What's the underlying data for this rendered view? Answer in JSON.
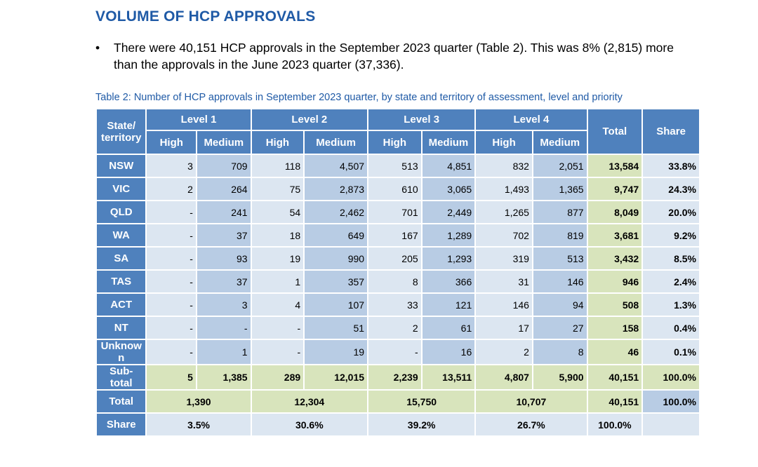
{
  "heading": "VOLUME OF HCP APPROVALS",
  "bullet": {
    "symbol": "•",
    "text": "There were 40,151 HCP approvals in the September 2023 quarter (Table 2). This was 8% (2,815) more than the approvals in the June 2023 quarter (37,336)."
  },
  "caption": "Table 2: Number of HCP approvals in September 2023 quarter, by state and territory of assessment, level and priority",
  "table": {
    "state_header": "State/ territory",
    "levels": [
      "Level 1",
      "Level 2",
      "Level 3",
      "Level 4"
    ],
    "sub_headers": [
      "High",
      "Medium",
      "High",
      "Medium",
      "High",
      "Medium",
      "High",
      "Medium"
    ],
    "total_header": "Total",
    "share_header": "Share",
    "rows": [
      {
        "state": "NSW",
        "cells": [
          "3",
          "709",
          "118",
          "4,507",
          "513",
          "4,851",
          "832",
          "2,051"
        ],
        "total": "13,584",
        "share": "33.8%"
      },
      {
        "state": "VIC",
        "cells": [
          "2",
          "264",
          "75",
          "2,873",
          "610",
          "3,065",
          "1,493",
          "1,365"
        ],
        "total": "9,747",
        "share": "24.3%"
      },
      {
        "state": "QLD",
        "cells": [
          "-",
          "241",
          "54",
          "2,462",
          "701",
          "2,449",
          "1,265",
          "877"
        ],
        "total": "8,049",
        "share": "20.0%"
      },
      {
        "state": "WA",
        "cells": [
          "-",
          "37",
          "18",
          "649",
          "167",
          "1,289",
          "702",
          "819"
        ],
        "total": "3,681",
        "share": "9.2%"
      },
      {
        "state": "SA",
        "cells": [
          "-",
          "93",
          "19",
          "990",
          "205",
          "1,293",
          "319",
          "513"
        ],
        "total": "3,432",
        "share": "8.5%"
      },
      {
        "state": "TAS",
        "cells": [
          "-",
          "37",
          "1",
          "357",
          "8",
          "366",
          "31",
          "146"
        ],
        "total": "946",
        "share": "2.4%"
      },
      {
        "state": "ACT",
        "cells": [
          "-",
          "3",
          "4",
          "107",
          "33",
          "121",
          "146",
          "94"
        ],
        "total": "508",
        "share": "1.3%"
      },
      {
        "state": "NT",
        "cells": [
          "-",
          "-",
          "-",
          "51",
          "2",
          "61",
          "17",
          "27"
        ],
        "total": "158",
        "share": "0.4%"
      },
      {
        "state": "Unknow n",
        "cells": [
          "-",
          "1",
          "-",
          "19",
          "-",
          "16",
          "2",
          "8"
        ],
        "total": "46",
        "share": "0.1%"
      }
    ],
    "subtotal": {
      "label": "Sub- total",
      "cells": [
        "5",
        "1,385",
        "289",
        "12,015",
        "2,239",
        "13,511",
        "4,807",
        "5,900"
      ],
      "total": "40,151",
      "share": "100.0%"
    },
    "total_row": {
      "label": "Total",
      "levels": [
        "1,390",
        "12,304",
        "15,750",
        "10,707"
      ],
      "total": "40,151",
      "share": "100.0%"
    },
    "share_row": {
      "label": "Share",
      "levels": [
        "3.5%",
        "30.6%",
        "39.2%",
        "26.7%"
      ],
      "total": "100.0%"
    }
  }
}
